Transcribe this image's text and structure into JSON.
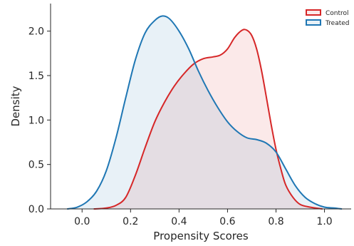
{
  "chart_data": {
    "type": "area",
    "xlabel": "Propensity Scores",
    "ylabel": "Density",
    "xlim": [
      -0.13,
      1.11
    ],
    "ylim": [
      0.0,
      2.31
    ],
    "x_ticks": [
      "0.0",
      "0.2",
      "0.4",
      "0.6",
      "0.8",
      "1.0"
    ],
    "y_ticks": [
      "0.0",
      "0.5",
      "1.0",
      "1.5",
      "2.0"
    ],
    "legend_position": "top-right",
    "grid": false,
    "series": [
      {
        "name": "Control",
        "color": "#d62728",
        "points": [
          [
            0.05,
            0.0
          ],
          [
            0.1,
            0.01
          ],
          [
            0.14,
            0.04
          ],
          [
            0.18,
            0.13
          ],
          [
            0.22,
            0.38
          ],
          [
            0.26,
            0.69
          ],
          [
            0.3,
            0.98
          ],
          [
            0.34,
            1.2
          ],
          [
            0.38,
            1.38
          ],
          [
            0.42,
            1.52
          ],
          [
            0.46,
            1.63
          ],
          [
            0.5,
            1.69
          ],
          [
            0.54,
            1.71
          ],
          [
            0.57,
            1.73
          ],
          [
            0.6,
            1.8
          ],
          [
            0.63,
            1.93
          ],
          [
            0.66,
            2.01
          ],
          [
            0.68,
            2.01
          ],
          [
            0.7,
            1.95
          ],
          [
            0.72,
            1.8
          ],
          [
            0.74,
            1.56
          ],
          [
            0.76,
            1.26
          ],
          [
            0.78,
            0.95
          ],
          [
            0.8,
            0.67
          ],
          [
            0.82,
            0.45
          ],
          [
            0.84,
            0.27
          ],
          [
            0.87,
            0.13
          ],
          [
            0.9,
            0.05
          ],
          [
            0.94,
            0.02
          ],
          [
            0.99,
            0.0
          ]
        ]
      },
      {
        "name": "Treated",
        "color": "#1f77b4",
        "points": [
          [
            -0.06,
            0.0
          ],
          [
            -0.02,
            0.02
          ],
          [
            0.02,
            0.08
          ],
          [
            0.06,
            0.2
          ],
          [
            0.1,
            0.43
          ],
          [
            0.14,
            0.8
          ],
          [
            0.18,
            1.25
          ],
          [
            0.22,
            1.68
          ],
          [
            0.26,
            1.98
          ],
          [
            0.3,
            2.12
          ],
          [
            0.33,
            2.17
          ],
          [
            0.36,
            2.14
          ],
          [
            0.4,
            2.0
          ],
          [
            0.44,
            1.8
          ],
          [
            0.48,
            1.55
          ],
          [
            0.52,
            1.33
          ],
          [
            0.56,
            1.14
          ],
          [
            0.6,
            0.98
          ],
          [
            0.64,
            0.87
          ],
          [
            0.68,
            0.8
          ],
          [
            0.72,
            0.78
          ],
          [
            0.76,
            0.74
          ],
          [
            0.8,
            0.64
          ],
          [
            0.84,
            0.45
          ],
          [
            0.88,
            0.26
          ],
          [
            0.92,
            0.13
          ],
          [
            0.96,
            0.06
          ],
          [
            1.0,
            0.02
          ],
          [
            1.04,
            0.01
          ],
          [
            1.07,
            0.0
          ]
        ]
      }
    ]
  }
}
